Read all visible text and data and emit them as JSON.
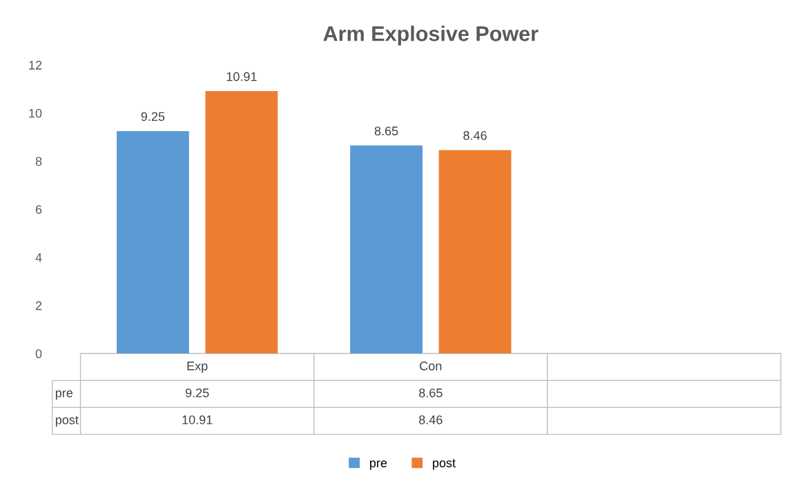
{
  "chart_data": {
    "type": "bar",
    "title": "Arm Explosive Power",
    "categories": [
      "Exp",
      "Con",
      null
    ],
    "series": [
      {
        "name": "pre",
        "color": "#5b9bd5",
        "values": [
          9.25,
          8.65,
          null
        ],
        "value_labels": [
          "9.25",
          "8.65",
          null
        ]
      },
      {
        "name": "post",
        "color": "#ed7d31",
        "values": [
          10.91,
          8.46,
          null
        ],
        "value_labels": [
          "10.91",
          "8.46",
          null
        ]
      }
    ],
    "ylim": [
      0,
      12
    ],
    "yticks": [
      0,
      2,
      4,
      6,
      8,
      10,
      12
    ],
    "grid": false,
    "legend": "bottom",
    "data_labels": true
  }
}
